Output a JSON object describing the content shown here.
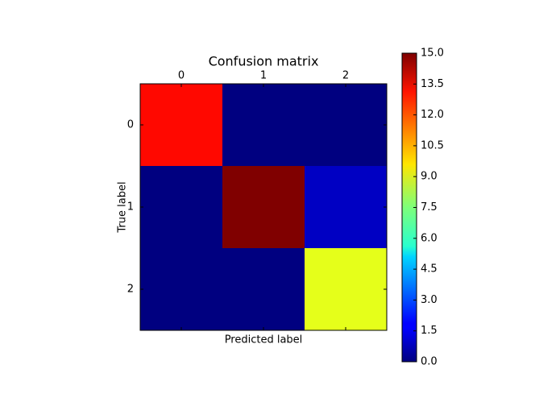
{
  "chart_data": {
    "type": "heatmap",
    "title": "Confusion matrix",
    "xlabel": "Predicted label",
    "ylabel": "True label",
    "x_categories": [
      "0",
      "1",
      "2"
    ],
    "y_categories": [
      "0",
      "1",
      "2"
    ],
    "values": [
      [
        13,
        0,
        0
      ],
      [
        0,
        15,
        1
      ],
      [
        0,
        0,
        9
      ]
    ],
    "colormap": "jet",
    "clim": [
      0,
      15
    ],
    "colorbar_ticks": [
      {
        "value": 0,
        "label": "0.0"
      },
      {
        "value": 1.5,
        "label": "1.5"
      },
      {
        "value": 3,
        "label": "3.0"
      },
      {
        "value": 4.5,
        "label": "4.5"
      },
      {
        "value": 6,
        "label": "6.0"
      },
      {
        "value": 7.5,
        "label": "7.5"
      },
      {
        "value": 9,
        "label": "9.0"
      },
      {
        "value": 10.5,
        "label": "10.5"
      },
      {
        "value": 12,
        "label": "12.0"
      },
      {
        "value": 13.5,
        "label": "13.5"
      },
      {
        "value": 15,
        "label": "15.0"
      }
    ]
  }
}
